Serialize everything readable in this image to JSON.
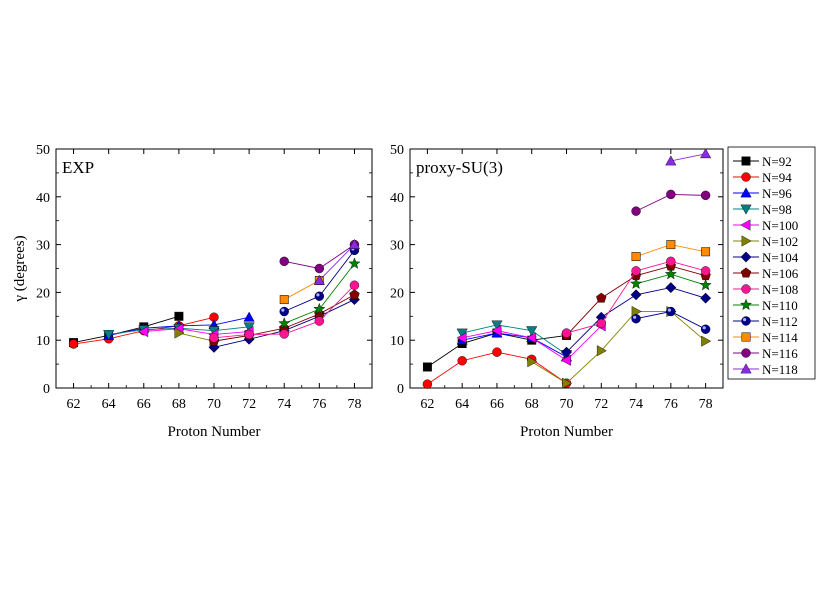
{
  "chart_data": [
    {
      "type": "line",
      "title": "EXP",
      "xlabel": "Proton Number",
      "ylabel": "γ (degrees)",
      "xlim": [
        61,
        79
      ],
      "ylim": [
        0,
        50
      ],
      "xticks": [
        62,
        64,
        66,
        68,
        70,
        72,
        74,
        76,
        78
      ],
      "yticks": [
        0,
        10,
        20,
        30,
        40,
        50
      ],
      "series": [
        {
          "name": "N=92",
          "x": [
            62,
            64,
            66,
            68
          ],
          "y": [
            9.5,
            11.0,
            12.8,
            15.0
          ]
        },
        {
          "name": "N=94",
          "x": [
            62,
            64,
            66,
            68,
            70
          ],
          "y": [
            9.2,
            10.3,
            12.0,
            13.0,
            14.8
          ]
        },
        {
          "name": "N=96",
          "x": [
            64,
            66,
            68,
            70,
            72
          ],
          "y": [
            11.0,
            12.5,
            13.0,
            13.2,
            14.8
          ]
        },
        {
          "name": "N=98",
          "x": [
            64,
            66,
            68,
            70,
            72
          ],
          "y": [
            11.2,
            12.2,
            12.5,
            12.0,
            12.8
          ]
        },
        {
          "name": "N=100",
          "x": [
            66,
            68,
            70,
            72
          ],
          "y": [
            11.8,
            12.4,
            11.2,
            11.8
          ]
        },
        {
          "name": "N=102",
          "x": [
            68,
            70,
            72
          ],
          "y": [
            11.5,
            9.8,
            11.0
          ]
        },
        {
          "name": "N=104",
          "x": [
            70,
            72,
            74,
            76,
            78
          ],
          "y": [
            8.5,
            10.2,
            12.0,
            15.0,
            18.5
          ]
        },
        {
          "name": "N=106",
          "x": [
            70,
            72,
            74,
            76,
            78
          ],
          "y": [
            9.8,
            11.0,
            12.5,
            15.5,
            19.5
          ]
        },
        {
          "name": "N=108",
          "x": [
            70,
            72,
            74,
            76,
            78
          ],
          "y": [
            10.5,
            11.2,
            11.3,
            14.0,
            21.5
          ]
        },
        {
          "name": "N=110",
          "x": [
            74,
            76,
            78
          ],
          "y": [
            13.5,
            16.5,
            26.0
          ]
        },
        {
          "name": "N=112",
          "x": [
            74,
            76,
            78
          ],
          "y": [
            16.0,
            19.2,
            28.8
          ]
        },
        {
          "name": "N=114",
          "x": [
            74,
            76
          ],
          "y": [
            18.5,
            22.5
          ]
        },
        {
          "name": "N=116",
          "x": [
            74,
            76,
            78
          ],
          "y": [
            26.5,
            25.0,
            30.0
          ]
        },
        {
          "name": "N=118",
          "x": [
            76,
            78
          ],
          "y": [
            22.5,
            30.0
          ]
        }
      ]
    },
    {
      "type": "line",
      "title": "proxy-SU(3)",
      "xlabel": "Proton Number",
      "ylabel": "",
      "xlim": [
        61,
        79
      ],
      "ylim": [
        0,
        50
      ],
      "xticks": [
        62,
        64,
        66,
        68,
        70,
        72,
        74,
        76,
        78
      ],
      "yticks": [
        0,
        10,
        20,
        30,
        40,
        50
      ],
      "series": [
        {
          "name": "N=92",
          "x": [
            62,
            64,
            66,
            68,
            70
          ],
          "y": [
            4.4,
            9.3,
            11.5,
            10.0,
            11.0
          ]
        },
        {
          "name": "N=94",
          "x": [
            62,
            64,
            66,
            68,
            70
          ],
          "y": [
            0.8,
            5.7,
            7.5,
            6.0,
            1.0
          ]
        },
        {
          "name": "N=96",
          "x": [
            64,
            66,
            68,
            70
          ],
          "y": [
            10.0,
            11.5,
            10.5,
            6.5
          ]
        },
        {
          "name": "N=98",
          "x": [
            64,
            66,
            68,
            70
          ],
          "y": [
            11.5,
            13.2,
            12.0,
            7.0
          ]
        },
        {
          "name": "N=100",
          "x": [
            64,
            66,
            68,
            70,
            72
          ],
          "y": [
            10.5,
            12.0,
            10.5,
            5.8,
            13.0
          ]
        },
        {
          "name": "N=102",
          "x": [
            68,
            70,
            72,
            74,
            76,
            78
          ],
          "y": [
            5.5,
            1.0,
            7.8,
            16.0,
            16.0,
            9.8
          ]
        },
        {
          "name": "N=104",
          "x": [
            70,
            72,
            74,
            76,
            78
          ],
          "y": [
            7.5,
            14.8,
            19.5,
            21.0,
            18.8
          ]
        },
        {
          "name": "N=106",
          "x": [
            70,
            72,
            74,
            76,
            78
          ],
          "y": [
            11.0,
            18.8,
            23.5,
            25.5,
            23.5
          ]
        },
        {
          "name": "N=108",
          "x": [
            70,
            72,
            74,
            76,
            78
          ],
          "y": [
            11.5,
            13.5,
            24.5,
            26.5,
            24.5
          ]
        },
        {
          "name": "N=110",
          "x": [
            74,
            76,
            78
          ],
          "y": [
            21.8,
            23.8,
            21.5
          ]
        },
        {
          "name": "N=112",
          "x": [
            74,
            76,
            78
          ],
          "y": [
            14.5,
            16.0,
            12.3
          ]
        },
        {
          "name": "N=114",
          "x": [
            74,
            76,
            78
          ],
          "y": [
            27.5,
            30.0,
            28.5
          ]
        },
        {
          "name": "N=116",
          "x": [
            74,
            76,
            78
          ],
          "y": [
            37.0,
            40.5,
            40.3
          ]
        },
        {
          "name": "N=118",
          "x": [
            76,
            78
          ],
          "y": [
            47.5,
            49.0
          ]
        }
      ]
    }
  ],
  "legend": {
    "placement": "right",
    "entries": [
      "N=92",
      "N=94",
      "N=96",
      "N=98",
      "N=100",
      "N=102",
      "N=104",
      "N=106",
      "N=108",
      "N=110",
      "N=112",
      "N=114",
      "N=116",
      "N=118"
    ]
  },
  "styles": [
    {
      "color": "#000000",
      "marker": "square"
    },
    {
      "color": "#ff0000",
      "marker": "circle"
    },
    {
      "color": "#0000ff",
      "marker": "triangle-up"
    },
    {
      "color": "#008080",
      "marker": "triangle-down"
    },
    {
      "color": "#ff00ff",
      "marker": "triangle-left"
    },
    {
      "color": "#808000",
      "marker": "triangle-right"
    },
    {
      "color": "#000080",
      "marker": "diamond"
    },
    {
      "color": "#800000",
      "marker": "pentagon"
    },
    {
      "color": "#ff1493",
      "marker": "circle"
    },
    {
      "color": "#008000",
      "marker": "star"
    },
    {
      "color": "#00008b",
      "marker": "ball"
    },
    {
      "color": "#ff8c00",
      "marker": "square"
    },
    {
      "color": "#800080",
      "marker": "circle"
    },
    {
      "color": "#8a2be2",
      "marker": "triangle-up"
    }
  ]
}
